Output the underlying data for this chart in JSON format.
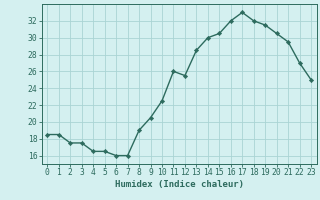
{
  "x": [
    0,
    1,
    2,
    3,
    4,
    5,
    6,
    7,
    8,
    9,
    10,
    11,
    12,
    13,
    14,
    15,
    16,
    17,
    18,
    19,
    20,
    21,
    22,
    23
  ],
  "y": [
    18.5,
    18.5,
    17.5,
    17.5,
    16.5,
    16.5,
    16.0,
    16.0,
    19.0,
    20.5,
    22.5,
    26.0,
    25.5,
    28.5,
    30.0,
    30.5,
    32.0,
    33.0,
    32.0,
    31.5,
    30.5,
    29.5,
    27.0,
    25.0
  ],
  "line_color": "#2d6b5e",
  "marker": "D",
  "marker_size": 2.2,
  "bg_color": "#d4f0f0",
  "grid_color": "#aad4d4",
  "tick_color": "#2d6b5e",
  "spine_color": "#2d6b5e",
  "xlabel": "Humidex (Indice chaleur)",
  "ylim": [
    15,
    34
  ],
  "yticks": [
    16,
    18,
    20,
    22,
    24,
    26,
    28,
    30,
    32
  ],
  "xticks": [
    0,
    1,
    2,
    3,
    4,
    5,
    6,
    7,
    8,
    9,
    10,
    11,
    12,
    13,
    14,
    15,
    16,
    17,
    18,
    19,
    20,
    21,
    22,
    23
  ],
  "xlabel_fontsize": 6.5,
  "tick_fontsize": 5.8,
  "line_width": 1.0,
  "xlim": [
    -0.5,
    23.5
  ]
}
